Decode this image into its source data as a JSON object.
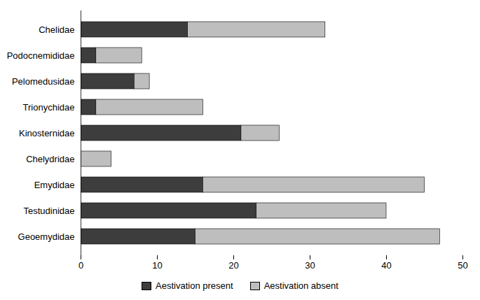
{
  "chart_data": {
    "type": "bar",
    "orientation": "horizontal",
    "stacked": true,
    "categories": [
      "Chelidae",
      "Podocnemididae",
      "Pelomedusidae",
      "Trionychidae",
      "Kinosternidae",
      "Chelydridae",
      "Emydidae",
      "Testudinidae",
      "Geoemydidae"
    ],
    "series": [
      {
        "name": "Aestivation present",
        "color": "#3d3d3d",
        "values": [
          14,
          2,
          7,
          2,
          21,
          0,
          16,
          23,
          15
        ]
      },
      {
        "name": "Aestivation absent",
        "color": "#bebebe",
        "values": [
          18,
          6,
          2,
          14,
          5,
          4,
          29,
          17,
          32
        ]
      }
    ],
    "xlim": [
      0,
      50
    ],
    "xticks": [
      0,
      10,
      20,
      30,
      40,
      50
    ],
    "grid": false,
    "legend": "bottom"
  }
}
